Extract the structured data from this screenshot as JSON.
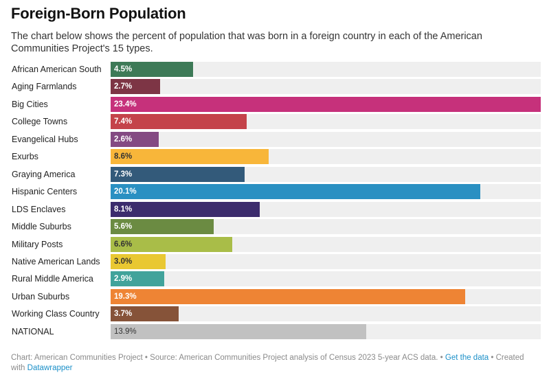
{
  "title": "Foreign-Born Population",
  "subtitle": "The chart below shows the percent of population that was born in a foreign country in each of the American Communities Project's 15 types.",
  "chart_data": {
    "type": "bar",
    "orientation": "horizontal",
    "title": "Foreign-Born Population",
    "xlim": [
      0,
      23.4
    ],
    "value_suffix": "%",
    "categories": [
      "African American South",
      "Aging Farmlands",
      "Big Cities",
      "College Towns",
      "Evangelical Hubs",
      "Exurbs",
      "Graying America",
      "Hispanic Centers",
      "LDS Enclaves",
      "Middle Suburbs",
      "Military Posts",
      "Native American Lands",
      "Rural Middle America",
      "Urban Suburbs",
      "Working Class Country",
      "NATIONAL"
    ],
    "values": [
      4.5,
      2.7,
      23.4,
      7.4,
      2.6,
      8.6,
      7.3,
      20.1,
      8.1,
      5.6,
      6.6,
      3.0,
      2.9,
      19.3,
      3.7,
      13.9
    ],
    "labels": [
      "4.5%",
      "2.7%",
      "23.4%",
      "7.4%",
      "2.6%",
      "8.6%",
      "7.3%",
      "20.1%",
      "8.1%",
      "5.6%",
      "6.6%",
      "3.0%",
      "2.9%",
      "19.3%",
      "3.7%",
      "13.9%"
    ],
    "colors": [
      "#3d7a57",
      "#7d3545",
      "#c6317b",
      "#c4434a",
      "#844a83",
      "#f8b63a",
      "#335a7a",
      "#2a90c2",
      "#3c2c6d",
      "#6b8b42",
      "#a9bd48",
      "#e9c832",
      "#41a39b",
      "#ee8434",
      "#865339",
      "#c1c1c1"
    ],
    "label_dark": [
      false,
      false,
      false,
      false,
      false,
      true,
      false,
      false,
      false,
      false,
      true,
      true,
      false,
      false,
      false,
      false
    ]
  },
  "footer": {
    "prefix": "Chart: American Communities Project • Source: American Communities Project analysis of Census 2023 5-year ACS data. • ",
    "get_data": "Get the data",
    "created": " • Created with ",
    "datawrapper": "Datawrapper"
  }
}
